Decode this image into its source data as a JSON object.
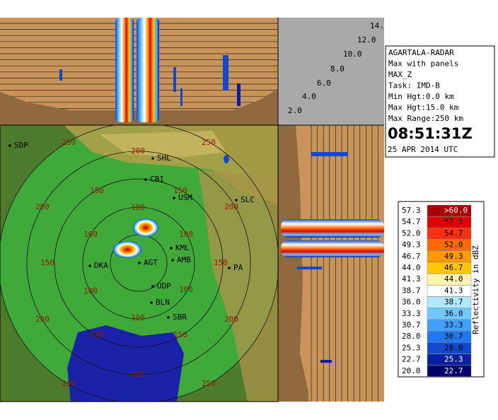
{
  "info": {
    "lines": [
      "AGARTALA-RADAR",
      "Max with panels",
      "MAX_Z",
      "Task: IMD-B",
      "Min Hgt:0.0 km",
      "Max Hgt:15.0 km",
      "Max Range:250 km"
    ],
    "time": "08:51:31Z",
    "date": "25 APR 2014 UTC"
  },
  "height_labels": [
    "14.",
    "12.0",
    "10.0",
    "8.0",
    "6.0",
    "4.0",
    "2.0"
  ],
  "stations": [
    "SDP",
    "SHL",
    "CBI",
    "USM",
    "SLC",
    "KML",
    "AMB",
    "DKA",
    "AGT",
    "UDP",
    "BLN",
    "SBR",
    "PA"
  ],
  "range_labels": [
    "250",
    "200",
    "250",
    "150",
    "150",
    "200",
    "100",
    "200",
    "100",
    "100",
    "150",
    "150",
    "100",
    "100",
    "200",
    "200",
    "150",
    "100",
    "150",
    "200",
    "250",
    "250"
  ],
  "legend": {
    "title": "Reflectivity in dBZ",
    "rows": [
      {
        "low": "57.3",
        "high": ">60.0",
        "color": "#a80000"
      },
      {
        "low": "54.7",
        "high": "57.3",
        "color": "#e00000"
      },
      {
        "low": "52.0",
        "high": "54.7",
        "color": "#ff3010"
      },
      {
        "low": "49.3",
        "high": "52.0",
        "color": "#ff6a00"
      },
      {
        "low": "46.7",
        "high": "49.3",
        "color": "#ff9a00"
      },
      {
        "low": "44.0",
        "high": "46.7",
        "color": "#ffc800"
      },
      {
        "low": "41.3",
        "high": "44.0",
        "color": "#fff3b0"
      },
      {
        "low": "38.7",
        "high": "41.3",
        "color": "#ffffff"
      },
      {
        "low": "36.0",
        "high": "38.7",
        "color": "#b0e8ff"
      },
      {
        "low": "33.3",
        "high": "36.0",
        "color": "#70c8ff"
      },
      {
        "low": "30.7",
        "high": "33.3",
        "color": "#40a0ff"
      },
      {
        "low": "28.0",
        "high": "30.7",
        "color": "#2078f0"
      },
      {
        "low": "25.3",
        "high": "28.0",
        "color": "#1048d0"
      },
      {
        "low": "22.7",
        "high": "25.3",
        "color": "#0820a0"
      },
      {
        "low": "20.0",
        "high": "22.7",
        "color": "#000068"
      }
    ]
  }
}
